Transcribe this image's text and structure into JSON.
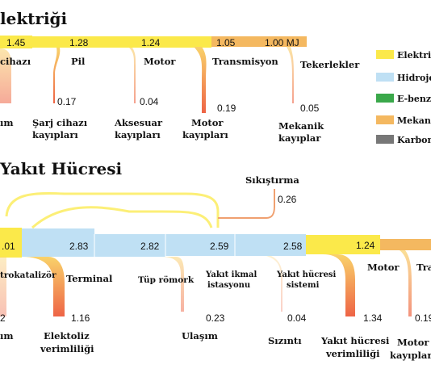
{
  "colors": {
    "electric": "#fbe94a",
    "hydrogen": "#bfe0f4",
    "gasoline": "#3aa84a",
    "mechanical": "#f4b860",
    "carbon": "#777777",
    "loss_start": "#f9d26a",
    "loss_end": "#ee6446"
  },
  "electric": {
    "title": "lektriği",
    "flow_values": [
      "1.45",
      "1.28",
      "1.24",
      "1.05",
      "1.00 MJ"
    ],
    "stages": [
      "cihazı",
      "Pil",
      "Motor",
      "Transmisyon",
      "Tekerlekler"
    ],
    "losses": [
      {
        "value": "",
        "label_lines": [
          "ım"
        ]
      },
      {
        "value": "0.17",
        "label_lines": [
          "Şarj cihazı",
          "kayıpları"
        ]
      },
      {
        "value": "0.04",
        "label_lines": [
          "Aksesuar",
          "kayıpları"
        ]
      },
      {
        "value": "0.19",
        "label_lines": [
          "Motor",
          "kayıpları"
        ]
      },
      {
        "value": "0.05",
        "label_lines": [
          "Mekanik",
          "kayıplar"
        ]
      }
    ]
  },
  "legend": [
    {
      "label": "Elektri",
      "color_key": "electric"
    },
    {
      "label": "Hidroje",
      "color_key": "hydrogen"
    },
    {
      "label": "E-benzi",
      "color_key": "gasoline"
    },
    {
      "label": "Mekani",
      "color_key": "mechanical"
    },
    {
      "label": "Karbon",
      "color_key": "carbon"
    }
  ],
  "hydrogen": {
    "title": "Yakıt Hücresi",
    "flow_values": [
      ".01",
      "2.83",
      "2.82",
      "2.59",
      "2.58",
      "1.24"
    ],
    "stages": {
      "electrocatalyzer": "trokatalizör",
      "terminal": "Terminal",
      "trailer": "Tüp römork",
      "station_lines": [
        "Yakıt ikmal",
        "istasyonu"
      ],
      "fuelcell_lines": [
        "Yakıt hücresi",
        "sistemi"
      ],
      "motor": "Motor",
      "transmission": "Tra"
    },
    "compression": {
      "label": "Sıkıştırma",
      "value": "0.26"
    },
    "losses": [
      {
        "value": "2",
        "label_lines": [
          "ım"
        ]
      },
      {
        "value": "1.16",
        "label_lines": [
          "Elektoliz",
          "verimliliği"
        ]
      },
      {
        "value": "0.23",
        "label_lines": [
          "Ulaşım"
        ]
      },
      {
        "value": "0.04",
        "label_lines": [
          "Sızıntı"
        ]
      },
      {
        "value": "1.34",
        "label_lines": [
          "Yakıt hücresi",
          "verimliliği"
        ]
      },
      {
        "value": "0.19",
        "label_lines": [
          "Motor",
          "kayıpları"
        ]
      }
    ]
  }
}
